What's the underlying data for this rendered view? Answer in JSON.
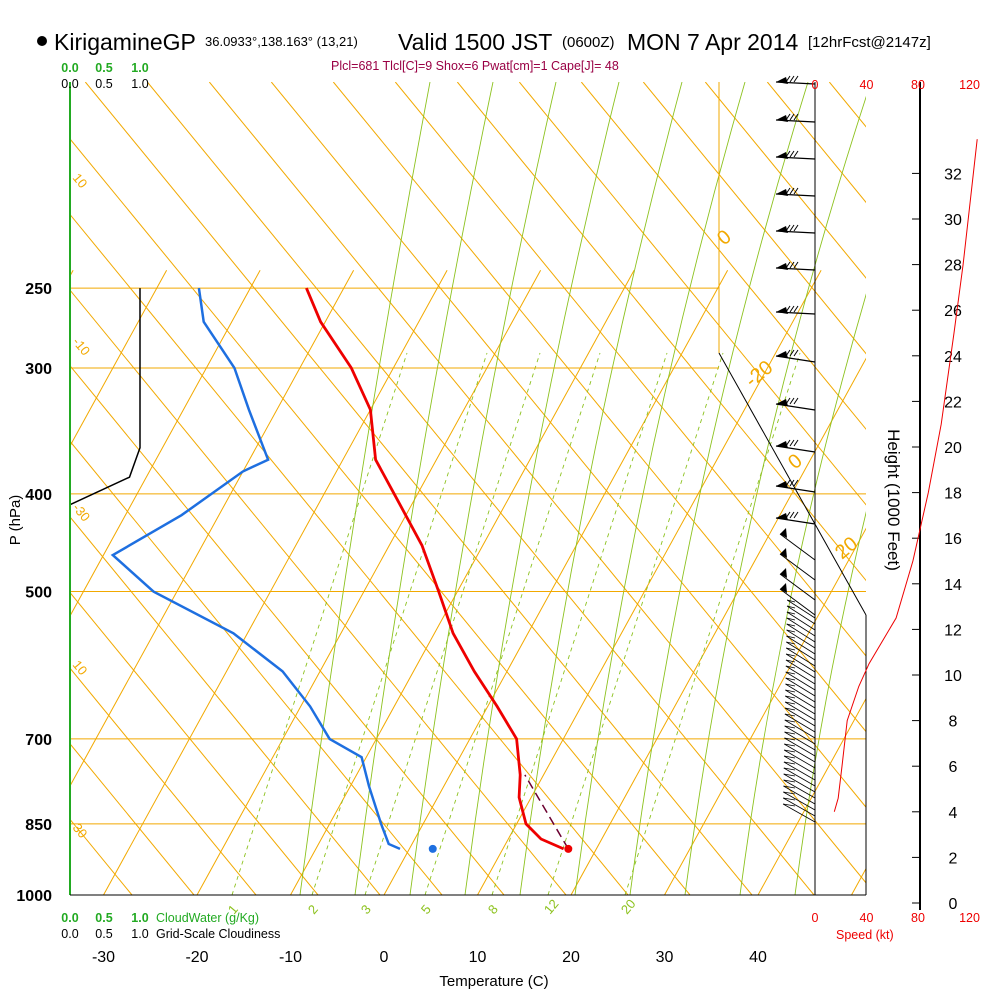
{
  "header": {
    "station": "KirigamineGP",
    "coords": "36.0933°,138.163° (13,21)",
    "valid_main": "Valid 1500 JST",
    "valid_z": "(0600Z)",
    "valid_date": "MON 7 Apr 2014",
    "forecast": "[12hrFcst@2147z]",
    "indices": "Plcl=681 Tlcl[C]=9 Shox=6 Pwat[cm]=1 Cape[J]= 48"
  },
  "colors": {
    "temperature": "#ee0000",
    "dewpoint": "#1e6fe0",
    "isotherm": "#f2a900",
    "dry_adiabat": "#f2a900",
    "moist_adiabat": "#8dc21f",
    "mixing_ratio": "#8dc21f",
    "parcel": "#6b0030",
    "cloudwater": "#22aa22",
    "speed": "#ee0000",
    "indices": "#990044"
  },
  "labels": {
    "pressure_axis": "P (hPa)",
    "temperature_axis": "Temperature (C)",
    "height_axis": "Height (1000 Feet)",
    "cloudwater_legend": "CloudWater (g/Kg)",
    "cloudiness_legend": "Grid-Scale Cloudiness",
    "speed_legend": "Speed (kt)"
  },
  "chart_data": {
    "type": "skew-t",
    "pressure_ticks": [
      250,
      300,
      400,
      500,
      700,
      850,
      1000
    ],
    "temperature_ticks": [
      -30,
      -20,
      -10,
      0,
      10,
      20,
      30,
      40
    ],
    "height_ticks": [
      0,
      2,
      4,
      6,
      8,
      10,
      12,
      14,
      16,
      18,
      20,
      22,
      24,
      26,
      28,
      30,
      32
    ],
    "speed_ticks": [
      0,
      40,
      80,
      120
    ],
    "cloudwater_ticks": [
      "0.0",
      "0.5",
      "1.0"
    ],
    "cloudiness_ticks": [
      "0.0",
      "0.5",
      "1.0"
    ],
    "dry_adiabat_labels": [
      "10",
      "0",
      "-10",
      "-20",
      "-30",
      "0",
      "10",
      "20",
      "30"
    ],
    "mixing_ratio_labels": [
      "1",
      "2",
      "3",
      "5",
      "8",
      "12",
      "20"
    ],
    "temperature_profile": [
      {
        "p": 900,
        "t": 16.5
      },
      {
        "p": 880,
        "t": 13.5
      },
      {
        "p": 850,
        "t": 11.0
      },
      {
        "p": 800,
        "t": 8.7
      },
      {
        "p": 760,
        "t": 7.5
      },
      {
        "p": 700,
        "t": 5.0
      },
      {
        "p": 650,
        "t": 1.0
      },
      {
        "p": 600,
        "t": -3.5
      },
      {
        "p": 550,
        "t": -8.0
      },
      {
        "p": 500,
        "t": -12.0
      },
      {
        "p": 450,
        "t": -16.5
      },
      {
        "p": 400,
        "t": -22.5
      },
      {
        "p": 370,
        "t": -26.5
      },
      {
        "p": 330,
        "t": -30.0
      },
      {
        "p": 300,
        "t": -34.5
      },
      {
        "p": 270,
        "t": -40.5
      },
      {
        "p": 250,
        "t": -44.0
      }
    ],
    "dewpoint_profile": [
      {
        "p": 900,
        "t": -1.0
      },
      {
        "p": 890,
        "t": -2.5
      },
      {
        "p": 850,
        "t": -4.5
      },
      {
        "p": 780,
        "t": -8.0
      },
      {
        "p": 730,
        "t": -10.5
      },
      {
        "p": 700,
        "t": -15.0
      },
      {
        "p": 650,
        "t": -19.0
      },
      {
        "p": 600,
        "t": -24.0
      },
      {
        "p": 550,
        "t": -31.5
      },
      {
        "p": 500,
        "t": -42.5
      },
      {
        "p": 460,
        "t": -49.0
      },
      {
        "p": 420,
        "t": -44.0
      },
      {
        "p": 380,
        "t": -40.0
      },
      {
        "p": 370,
        "t": -38.0
      },
      {
        "p": 330,
        "t": -43.0
      },
      {
        "p": 300,
        "t": -47.0
      },
      {
        "p": 270,
        "t": -53.0
      },
      {
        "p": 250,
        "t": -55.5
      }
    ],
    "parcel_path": [
      {
        "p": 900,
        "t": 17.0
      },
      {
        "p": 760,
        "t": 8.0
      }
    ],
    "surface_temperature": {
      "p": 900,
      "t": 17.0
    },
    "surface_dewpoint": {
      "p": 900,
      "t": 2.5
    },
    "grid_scale_cloudiness": [
      {
        "p": 250,
        "v": 1.0
      },
      {
        "p": 360,
        "v": 1.0
      },
      {
        "p": 385,
        "v": 0.85
      },
      {
        "p": 410,
        "v": 0.0
      }
    ],
    "wind_speed_profile": [
      {
        "h": 4.0,
        "kt": 15
      },
      {
        "h": 4.6,
        "kt": 18
      },
      {
        "h": 6.0,
        "kt": 21
      },
      {
        "h": 8.0,
        "kt": 25
      },
      {
        "h": 9.5,
        "kt": 34
      },
      {
        "h": 10.5,
        "kt": 42
      },
      {
        "h": 12.5,
        "kt": 63
      },
      {
        "h": 15.0,
        "kt": 76
      },
      {
        "h": 18.0,
        "kt": 88
      },
      {
        "h": 21.0,
        "kt": 98
      },
      {
        "h": 25.0,
        "kt": 108
      },
      {
        "h": 28.0,
        "kt": 115
      },
      {
        "h": 31.0,
        "kt": 121
      },
      {
        "h": 33.5,
        "kt": 126
      }
    ]
  }
}
